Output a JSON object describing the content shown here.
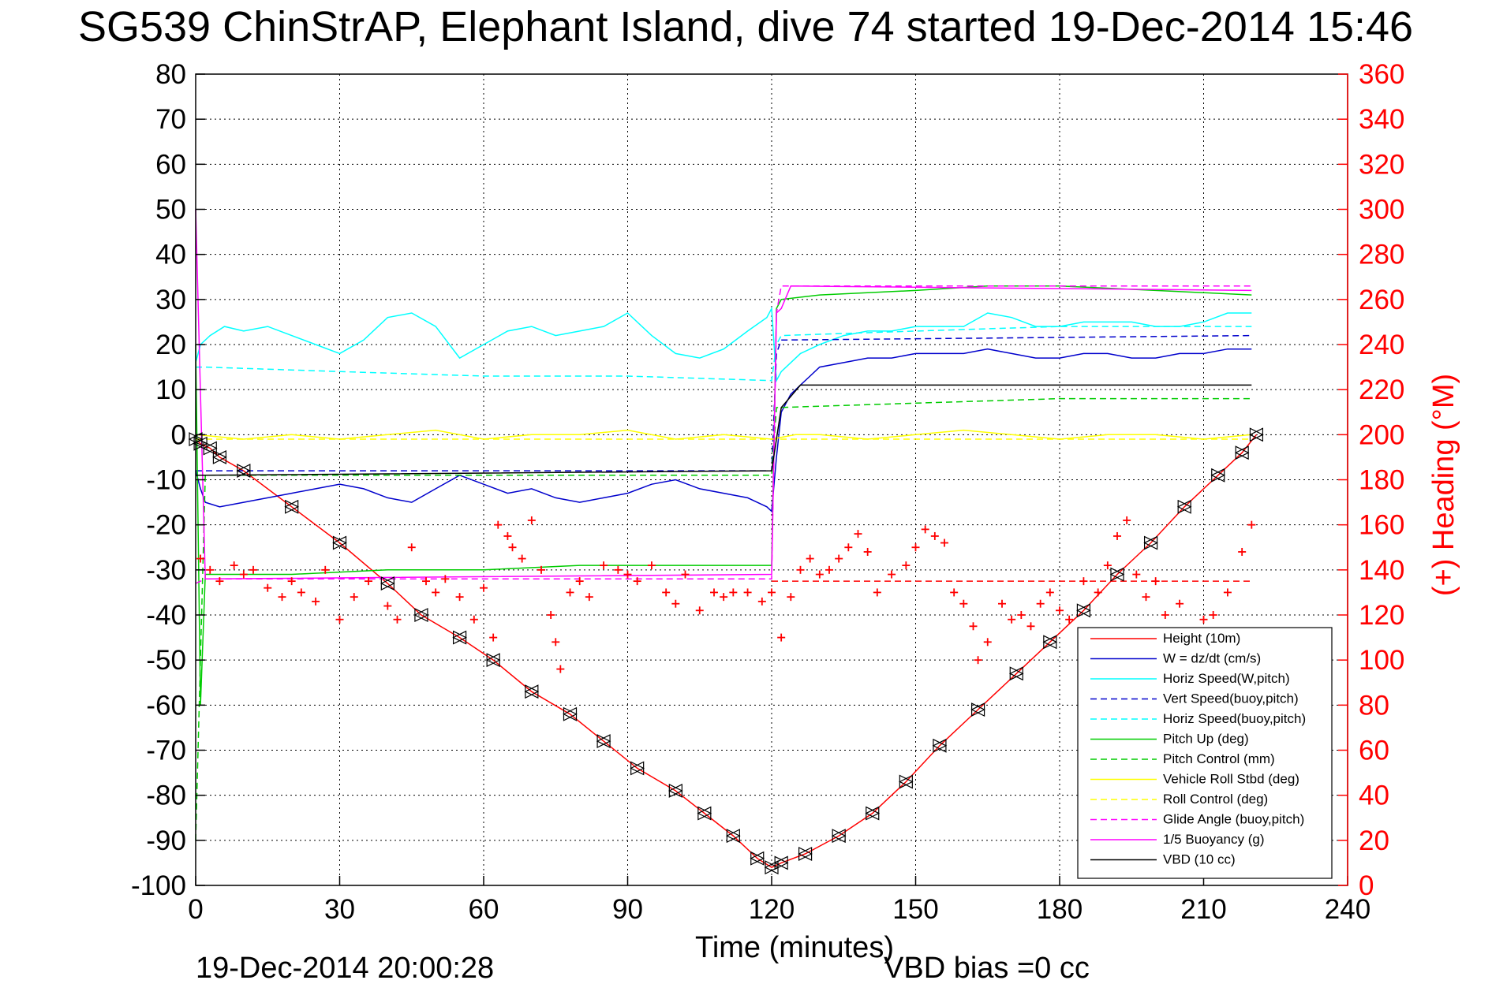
{
  "chart_data": {
    "type": "line",
    "title": "SG539 ChinStrAP, Elephant Island, dive 74 started 19-Dec-2014 15:46",
    "xlabel": "Time (minutes)",
    "ylabel_right": "(+) Heading (°M)",
    "xlim": [
      0,
      240
    ],
    "ylim": [
      -100,
      80
    ],
    "ylim_right": [
      0,
      360
    ],
    "x_ticks": [
      "0",
      "30",
      "60",
      "90",
      "120",
      "150",
      "180",
      "210",
      "240"
    ],
    "y_ticks": [
      "80",
      "70",
      "60",
      "50",
      "40",
      "30",
      "20",
      "10",
      "0",
      "-10",
      "-20",
      "-30",
      "-40",
      "-50",
      "-60",
      "-70",
      "-80",
      "-90",
      "-100"
    ],
    "y_right_ticks": [
      "360",
      "340",
      "320",
      "300",
      "280",
      "260",
      "240",
      "220",
      "200",
      "180",
      "160",
      "140",
      "120",
      "100",
      "80",
      "60",
      "40",
      "20",
      "0"
    ],
    "footer_left": "19-Dec-2014 20:00:28",
    "footer_right": "VBD bias =0 cc",
    "grid": true,
    "legend_position": "lower-right",
    "series": [
      {
        "name": "Height (10m)",
        "color": "#ff0000",
        "style": "solid",
        "markers": true,
        "x": [
          0,
          1,
          3,
          5,
          10,
          20,
          30,
          40,
          47,
          55,
          62,
          70,
          78,
          85,
          92,
          100,
          106,
          112,
          117,
          120,
          122,
          127,
          134,
          141,
          148,
          155,
          163,
          171,
          178,
          185,
          192,
          199,
          206,
          213,
          218,
          221
        ],
        "y": [
          -1,
          -2,
          -3,
          -5,
          -8,
          -16,
          -24,
          -33,
          -40,
          -45,
          -50,
          -57,
          -62,
          -68,
          -74,
          -79,
          -84,
          -89,
          -94,
          -96,
          -95,
          -93,
          -89,
          -84,
          -77,
          -69,
          -61,
          -53,
          -46,
          -39,
          -31,
          -24,
          -16,
          -9,
          -4,
          0
        ]
      },
      {
        "name": "W = dz/dt (cm/s)",
        "color": "#0000cc",
        "style": "solid",
        "x": [
          0,
          1,
          2,
          5,
          10,
          15,
          20,
          25,
          30,
          35,
          40,
          45,
          50,
          55,
          60,
          65,
          70,
          75,
          80,
          85,
          90,
          95,
          100,
          105,
          110,
          115,
          119,
          120,
          121,
          122,
          124,
          126,
          128,
          130,
          135,
          140,
          145,
          150,
          155,
          160,
          165,
          170,
          175,
          180,
          185,
          190,
          195,
          200,
          205,
          210,
          215,
          220
        ],
        "y": [
          -8,
          -12,
          -15,
          -16,
          -15,
          -14,
          -13,
          -12,
          -11,
          -12,
          -14,
          -15,
          -12,
          -9,
          -11,
          -13,
          -12,
          -14,
          -15,
          -14,
          -13,
          -11,
          -10,
          -12,
          -13,
          -14,
          -16,
          -17,
          -5,
          5,
          9,
          11,
          13,
          15,
          16,
          17,
          17,
          18,
          18,
          18,
          19,
          18,
          17,
          17,
          18,
          18,
          17,
          17,
          18,
          18,
          19,
          19
        ]
      },
      {
        "name": "Horiz Speed(W,pitch)",
        "color": "#00ffff",
        "style": "solid",
        "x": [
          0,
          1,
          3,
          6,
          10,
          15,
          20,
          25,
          30,
          35,
          40,
          45,
          50,
          55,
          60,
          65,
          70,
          75,
          80,
          85,
          90,
          95,
          100,
          105,
          110,
          115,
          119,
          120,
          121,
          122,
          124,
          126,
          128,
          130,
          135,
          140,
          145,
          150,
          155,
          160,
          165,
          170,
          175,
          180,
          185,
          190,
          195,
          200,
          205,
          210,
          215,
          220
        ],
        "y": [
          16,
          20,
          22,
          24,
          23,
          24,
          22,
          20,
          18,
          21,
          26,
          27,
          24,
          17,
          20,
          23,
          24,
          22,
          23,
          24,
          27,
          22,
          18,
          17,
          19,
          23,
          26,
          28,
          12,
          14,
          16,
          18,
          19,
          20,
          22,
          23,
          23,
          24,
          24,
          24,
          27,
          26,
          24,
          24,
          25,
          25,
          25,
          24,
          24,
          25,
          27,
          27
        ]
      },
      {
        "name": "Vert Speed(buoy,pitch)",
        "color": "#0000cc",
        "style": "dashed",
        "x": [
          0,
          2,
          120,
          121,
          122,
          220
        ],
        "y": [
          -8,
          -8,
          -8,
          18,
          21,
          22
        ]
      },
      {
        "name": "Horiz Speed(buoy,pitch)",
        "color": "#00ffff",
        "style": "dashed",
        "x": [
          0,
          2,
          30,
          60,
          90,
          120,
          121,
          122,
          150,
          180,
          220
        ],
        "y": [
          15,
          15,
          14,
          13,
          13,
          12,
          20,
          22,
          23,
          24,
          24
        ]
      },
      {
        "name": "Pitch Up (deg)",
        "color": "#00cc00",
        "style": "solid",
        "x": [
          0,
          1,
          2,
          3,
          6,
          20,
          40,
          60,
          80,
          100,
          119,
          120,
          121,
          122,
          130,
          150,
          165,
          180,
          200,
          220
        ],
        "y": [
          20,
          -60,
          -31,
          -31,
          -31,
          -31,
          -30,
          -30,
          -29,
          -29,
          -29,
          -29,
          28,
          30,
          31,
          32,
          33,
          33,
          32,
          31
        ]
      },
      {
        "name": "Pitch Control (mm)",
        "color": "#00cc00",
        "style": "dashed",
        "x": [
          0,
          2,
          120,
          121,
          150,
          180,
          220
        ],
        "y": [
          -90,
          -9,
          -9,
          6,
          7,
          8,
          8
        ]
      },
      {
        "name": "Vehicle Roll Stbd (deg)",
        "color": "#ffff00",
        "style": "solid",
        "x": [
          0,
          10,
          20,
          30,
          40,
          50,
          60,
          70,
          80,
          90,
          100,
          110,
          120,
          125,
          130,
          140,
          150,
          160,
          170,
          180,
          190,
          200,
          210,
          220
        ],
        "y": [
          0,
          -1,
          0,
          -1,
          0,
          1,
          -1,
          0,
          0,
          1,
          -1,
          0,
          -1,
          0,
          0,
          -1,
          0,
          1,
          0,
          -1,
          0,
          0,
          -1,
          0
        ]
      },
      {
        "name": "Roll Control (deg)",
        "color": "#ffff00",
        "style": "dashed",
        "x": [
          0,
          220
        ],
        "y": [
          -1,
          -1
        ]
      },
      {
        "name": "Glide Angle (buoy,pitch)",
        "color": "#ff00ff",
        "style": "dashed",
        "x": [
          0,
          2,
          120,
          121,
          122,
          220
        ],
        "y": [
          -33,
          -32,
          -32,
          27,
          33,
          33
        ]
      },
      {
        "name": "1/5 Buoyancy (g)",
        "color": "#ff00ff",
        "style": "solid",
        "x": [
          0,
          2,
          120,
          121,
          122,
          124,
          220
        ],
        "y": [
          50,
          -32,
          -31,
          27,
          28,
          33,
          32
        ]
      },
      {
        "name": "VBD (10 cc)",
        "color": "#000000",
        "style": "solid",
        "x": [
          0,
          2,
          120,
          122,
          126,
          220
        ],
        "y": [
          -9,
          -9,
          -8,
          6,
          11,
          11
        ]
      },
      {
        "name": "Heading",
        "color": "#ff0000",
        "style": "markers",
        "axis": "right",
        "x": [
          1,
          3,
          5,
          8,
          10,
          12,
          15,
          18,
          20,
          22,
          25,
          27,
          30,
          33,
          36,
          40,
          42,
          45,
          48,
          50,
          52,
          55,
          58,
          60,
          62,
          63,
          65,
          66,
          68,
          70,
          72,
          74,
          75,
          76,
          78,
          80,
          82,
          85,
          88,
          90,
          92,
          95,
          98,
          100,
          102,
          105,
          108,
          110,
          112,
          115,
          118,
          120,
          122,
          124,
          126,
          128,
          130,
          132,
          134,
          136,
          138,
          140,
          142,
          145,
          148,
          150,
          152,
          154,
          156,
          158,
          160,
          162,
          163,
          165,
          168,
          170,
          172,
          174,
          176,
          178,
          180,
          182,
          185,
          188,
          190,
          192,
          194,
          196,
          198,
          200,
          202,
          205,
          208,
          210,
          212,
          215,
          218,
          220
        ],
        "y": [
          145,
          140,
          135,
          142,
          138,
          140,
          132,
          128,
          135,
          130,
          126,
          140,
          118,
          128,
          135,
          124,
          118,
          150,
          135,
          130,
          136,
          128,
          118,
          132,
          110,
          160,
          155,
          150,
          145,
          162,
          140,
          120,
          108,
          96,
          130,
          135,
          128,
          142,
          140,
          138,
          135,
          142,
          130,
          125,
          138,
          122,
          130,
          128,
          130,
          130,
          126,
          130,
          110,
          128,
          140,
          145,
          138,
          140,
          145,
          150,
          156,
          148,
          130,
          138,
          142,
          150,
          158,
          155,
          152,
          130,
          125,
          115,
          100,
          108,
          125,
          118,
          120,
          115,
          125,
          130,
          122,
          118,
          135,
          130,
          142,
          155,
          162,
          138,
          128,
          135,
          120,
          125,
          110,
          118,
          120,
          130,
          148,
          160
        ]
      }
    ],
    "reference_lines": [
      {
        "series": "Heading",
        "axis": "right",
        "y": 135,
        "color": "#ff0000",
        "style": "dashed",
        "x_start": 120,
        "x_end": 220
      }
    ]
  }
}
